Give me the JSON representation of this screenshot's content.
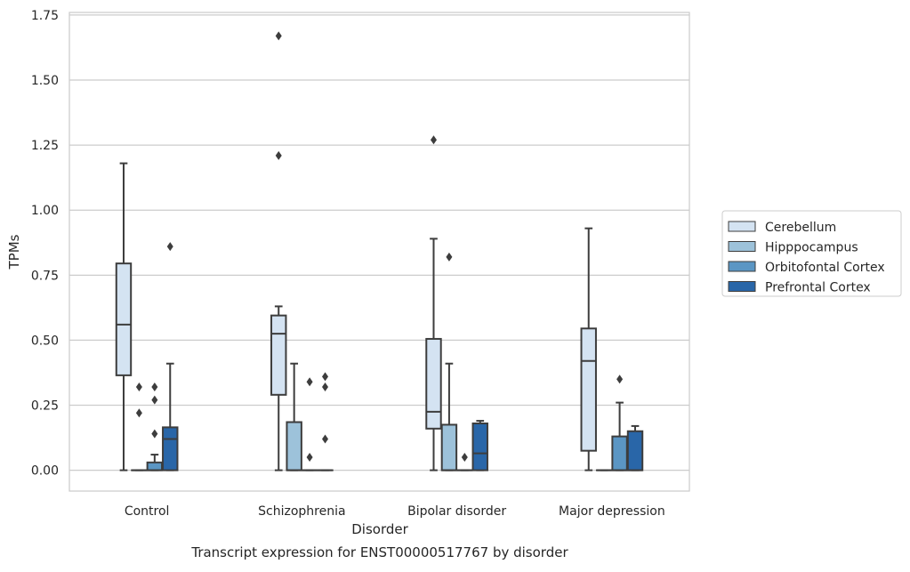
{
  "chart_data": {
    "type": "box",
    "title": "Transcript expression for ENST00000517767 by disorder",
    "xlabel": "Disorder",
    "ylabel": "TPMs",
    "ylim": [
      -0.08,
      1.76
    ],
    "yticks": [
      0.0,
      0.25,
      0.5,
      0.75,
      1.0,
      1.25,
      1.5,
      1.75
    ],
    "ytick_labels": [
      "0.00",
      "0.25",
      "0.50",
      "0.75",
      "1.00",
      "1.25",
      "1.50",
      "1.75"
    ],
    "grid": true,
    "legend_position": "right",
    "categories": [
      "Control",
      "Schizophrenia",
      "Bipolar disorder",
      "Major depression"
    ],
    "series": [
      {
        "name": "Cerebellum",
        "color": "#d4e3f2",
        "boxes": [
          {
            "whisker_low": 0.0,
            "q1": 0.365,
            "median": 0.56,
            "q3": 0.795,
            "whisker_high": 1.18,
            "outliers": []
          },
          {
            "whisker_low": 0.0,
            "q1": 0.29,
            "median": 0.525,
            "q3": 0.595,
            "whisker_high": 0.63,
            "outliers": [
              1.21,
              1.67
            ]
          },
          {
            "whisker_low": 0.0,
            "q1": 0.16,
            "median": 0.225,
            "q3": 0.505,
            "whisker_high": 0.89,
            "outliers": [
              1.27
            ]
          },
          {
            "whisker_low": 0.0,
            "q1": 0.075,
            "median": 0.42,
            "q3": 0.545,
            "whisker_high": 0.93,
            "outliers": []
          }
        ]
      },
      {
        "name": "Hipppocampus",
        "color": "#9dc2da",
        "boxes": [
          {
            "whisker_low": 0.0,
            "q1": 0.0,
            "median": 0.0,
            "q3": 0.0,
            "whisker_high": 0.0,
            "outliers": [
              0.22,
              0.32
            ]
          },
          {
            "whisker_low": 0.0,
            "q1": 0.0,
            "median": 0.0,
            "q3": 0.185,
            "whisker_high": 0.41,
            "outliers": []
          },
          {
            "whisker_low": 0.0,
            "q1": 0.0,
            "median": 0.0,
            "q3": 0.175,
            "whisker_high": 0.41,
            "outliers": [
              0.82
            ]
          },
          {
            "whisker_low": 0.0,
            "q1": 0.0,
            "median": 0.0,
            "q3": 0.0,
            "whisker_high": 0.0,
            "outliers": []
          }
        ]
      },
      {
        "name": "Orbitofontal Cortex",
        "color": "#5b96c4",
        "boxes": [
          {
            "whisker_low": 0.0,
            "q1": 0.0,
            "median": 0.0,
            "q3": 0.03,
            "whisker_high": 0.06,
            "outliers": [
              0.14,
              0.27,
              0.32
            ]
          },
          {
            "whisker_low": 0.0,
            "q1": 0.0,
            "median": 0.0,
            "q3": 0.0,
            "whisker_high": 0.0,
            "outliers": [
              0.05,
              0.34
            ]
          },
          {
            "whisker_low": 0.0,
            "q1": 0.0,
            "median": 0.0,
            "q3": 0.0,
            "whisker_high": 0.0,
            "outliers": [
              0.05
            ]
          },
          {
            "whisker_low": 0.0,
            "q1": 0.0,
            "median": 0.0,
            "q3": 0.13,
            "whisker_high": 0.26,
            "outliers": [
              0.35
            ]
          }
        ]
      },
      {
        "name": "Prefrontal Cortex",
        "color": "#2966a8",
        "boxes": [
          {
            "whisker_low": 0.0,
            "q1": 0.0,
            "median": 0.12,
            "q3": 0.165,
            "whisker_high": 0.41,
            "outliers": [
              0.86
            ]
          },
          {
            "whisker_low": 0.0,
            "q1": 0.0,
            "median": 0.0,
            "q3": 0.0,
            "whisker_high": 0.0,
            "outliers": [
              0.12,
              0.32,
              0.36
            ]
          },
          {
            "whisker_low": 0.0,
            "q1": 0.0,
            "median": 0.065,
            "q3": 0.18,
            "whisker_high": 0.19,
            "outliers": []
          },
          {
            "whisker_low": 0.0,
            "q1": 0.0,
            "median": 0.0,
            "q3": 0.15,
            "whisker_high": 0.17,
            "outliers": []
          }
        ]
      }
    ]
  }
}
